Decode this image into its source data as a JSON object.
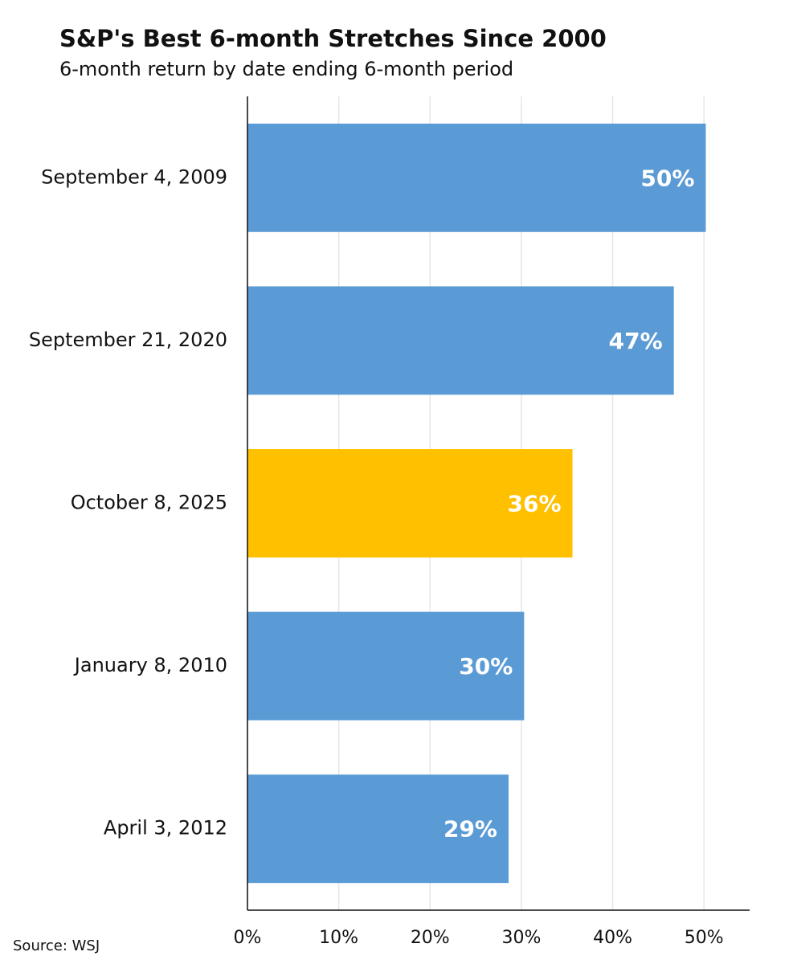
{
  "chart_data": {
    "type": "bar",
    "orientation": "horizontal",
    "title": "S&P's Best 6-month Stretches Since 2000",
    "subtitle": "6-month return by date ending 6-month period",
    "categories": [
      "September 4, 2009",
      "September 21, 2020",
      "October 8, 2025",
      "January 8, 2010",
      "April 3, 2012"
    ],
    "values": [
      50.2,
      46.7,
      35.6,
      30.3,
      28.6
    ],
    "value_labels": [
      "50%",
      "47%",
      "36%",
      "30%",
      "29%"
    ],
    "colors": [
      "#5b9bd5",
      "#5b9bd5",
      "#ffc000",
      "#5b9bd5",
      "#5b9bd5"
    ],
    "xlim": [
      0,
      55
    ],
    "xticks": [
      {
        "value": 0,
        "label": "0%"
      },
      {
        "value": 10,
        "label": "10%"
      },
      {
        "value": 20,
        "label": "20%"
      },
      {
        "value": 30,
        "label": "30%"
      },
      {
        "value": 40,
        "label": "40%"
      },
      {
        "value": 50,
        "label": "50%"
      }
    ],
    "grid": true,
    "source": "Source: WSJ"
  }
}
